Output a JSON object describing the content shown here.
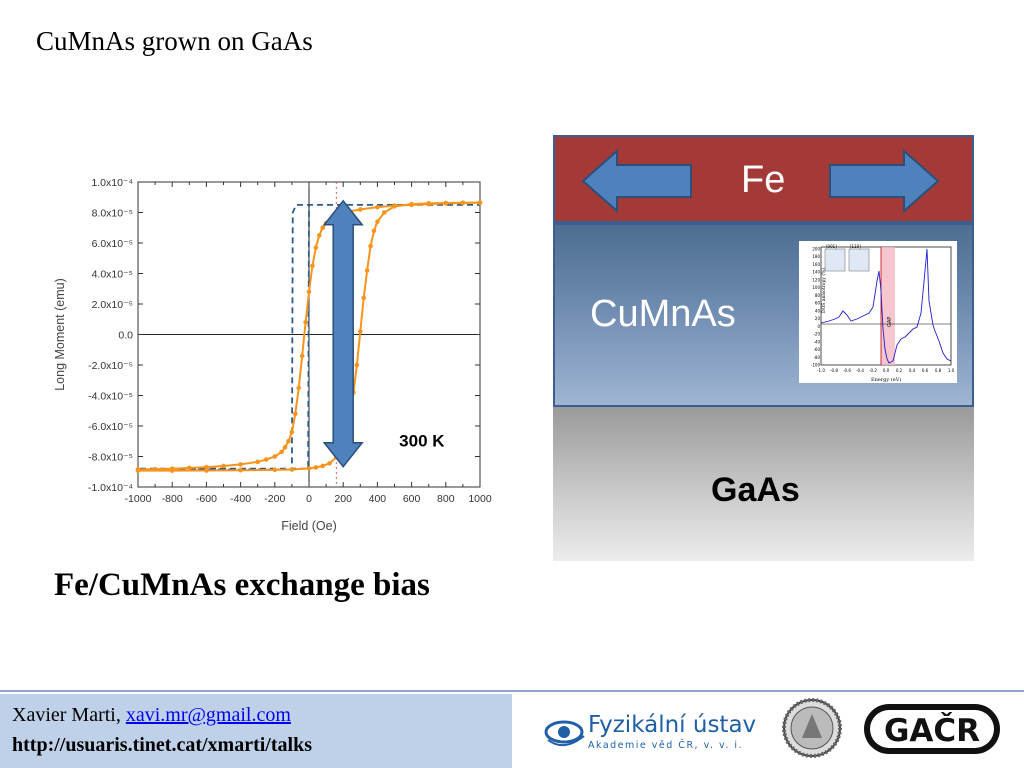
{
  "slide": {
    "title": "CuMnAs grown on GaAs",
    "caption": "Fe/CuMnAs exchange bias"
  },
  "chart_data": {
    "type": "line",
    "xlabel": "Field (Oe)",
    "ylabel": "Long Moment (emu)",
    "xlim": [
      -1000,
      1000
    ],
    "ylim": [
      -0.0001,
      0.0001
    ],
    "x_ticks": [
      "-1000",
      "-800",
      "-600",
      "-400",
      "-200",
      "0",
      "200",
      "400",
      "600",
      "800",
      "1000"
    ],
    "y_ticks": [
      "1.0x10⁻⁴",
      "8.0x10⁻⁵",
      "6.0x10⁻⁵",
      "4.0x10⁻⁵",
      "2.0x10⁻⁵",
      "0.0",
      "-2.0x10⁻⁵",
      "-4.0x10⁻⁵",
      "-6.0x10⁻⁵",
      "-8.0x10⁻⁵",
      "-1.0x10⁻⁴"
    ],
    "y_tick_values": [
      0.0001,
      8e-05,
      6e-05,
      4e-05,
      2e-05,
      0,
      -2e-05,
      -4e-05,
      -6e-05,
      -8e-05,
      -0.0001
    ],
    "annotation": "300 K",
    "series": [
      {
        "x": [
          -1000,
          -900,
          -800,
          -700,
          -600,
          -500,
          -400,
          -300,
          -250,
          -200,
          -160,
          -140,
          -120,
          -100,
          -80,
          -60,
          -40,
          -20,
          0,
          20,
          40,
          60,
          80,
          100,
          150,
          200,
          300,
          400,
          500,
          600,
          700,
          800,
          900,
          1000
        ],
        "y": [
          -8.85e-05,
          -8.83e-05,
          -8.8e-05,
          -8.75e-05,
          -8.7e-05,
          -8.62e-05,
          -8.52e-05,
          -8.35e-05,
          -8.2e-05,
          -8e-05,
          -7.7e-05,
          -7.4e-05,
          -7e-05,
          -6.4e-05,
          -5.2e-05,
          -3.5e-05,
          -1.4e-05,
          8e-06,
          2.8e-05,
          4.5e-05,
          5.7e-05,
          6.5e-05,
          7e-05,
          7.3e-05,
          7.7e-05,
          8e-05,
          8.2e-05,
          8.35e-05,
          8.45e-05,
          8.5e-05,
          8.55e-05,
          8.6e-05,
          8.62e-05,
          8.65e-05
        ],
        "color": "#f7941d"
      },
      {
        "x": [
          1000,
          900,
          800,
          700,
          600,
          500,
          440,
          400,
          380,
          360,
          340,
          320,
          300,
          280,
          260,
          240,
          220,
          200,
          180,
          160,
          120,
          80,
          40,
          0,
          -100,
          -200,
          -400,
          -600,
          -800,
          -1000
        ],
        "y": [
          8.65e-05,
          8.64e-05,
          8.62e-05,
          8.6e-05,
          8.55e-05,
          8.4e-05,
          8e-05,
          7.4e-05,
          6.8e-05,
          5.8e-05,
          4.2e-05,
          2.4e-05,
          2e-06,
          -2e-05,
          -3.8e-05,
          -5e-05,
          -6.2e-05,
          -7.1e-05,
          -7.7e-05,
          -8.05e-05,
          -8.45e-05,
          -8.62e-05,
          -8.72e-05,
          -8.78e-05,
          -8.85e-05,
          -8.88e-05,
          -8.9e-05,
          -8.92e-05,
          -8.93e-05,
          -8.93e-05
        ],
        "color": "#f7941d"
      }
    ],
    "dashed_loop": {
      "x": [
        -1000,
        -100,
        -95,
        -75,
        1000,
        1000,
        0,
        -5,
        -30,
        -1000
      ],
      "y": [
        -8.85e-05,
        -8.85e-05,
        8e-05,
        8.5e-05,
        8.5e-05,
        8.5e-05,
        8.5e-05,
        -8.8e-05,
        -8.8e-05,
        -8.8e-05
      ],
      "color": "#2e5b8a"
    },
    "vline_x": 160,
    "grid": false
  },
  "stack": {
    "fe_label": "Fe",
    "cumnas_label": "CuMnAs",
    "gaas_label": "GaAs",
    "fe_color": "#a43a38",
    "arrow_color": "#4f81bd",
    "inset": {
      "ylabel": "DOS anisotropy  (%)",
      "xlabel": "Energy (eV)",
      "gap_label": "GAP",
      "y_ticks": [
        "200",
        "180",
        "160",
        "140",
        "120",
        "100",
        "80",
        "60",
        "40",
        "20",
        "0",
        "-20",
        "-40",
        "-60",
        "-80",
        "-100"
      ],
      "x_ticks": [
        "-1.0",
        "-0.8",
        "-0.6",
        "-0.4",
        "-0.2",
        "0.0",
        "0.2",
        "0.4",
        "0.6",
        "0.8",
        "1.0"
      ],
      "box_labels": [
        "[001]",
        "[110]"
      ]
    }
  },
  "footer": {
    "name": "Xavier Marti, ",
    "email": "xavi.mr@gmail.com",
    "url": "http://usuaris.tinet.cat/xmarti/talks",
    "logo_fzu_title": "Fyzikální ústav",
    "logo_fzu_subtitle": "Akademie věd ČR, v. v. i.",
    "logo_gacr": "GAČR"
  }
}
